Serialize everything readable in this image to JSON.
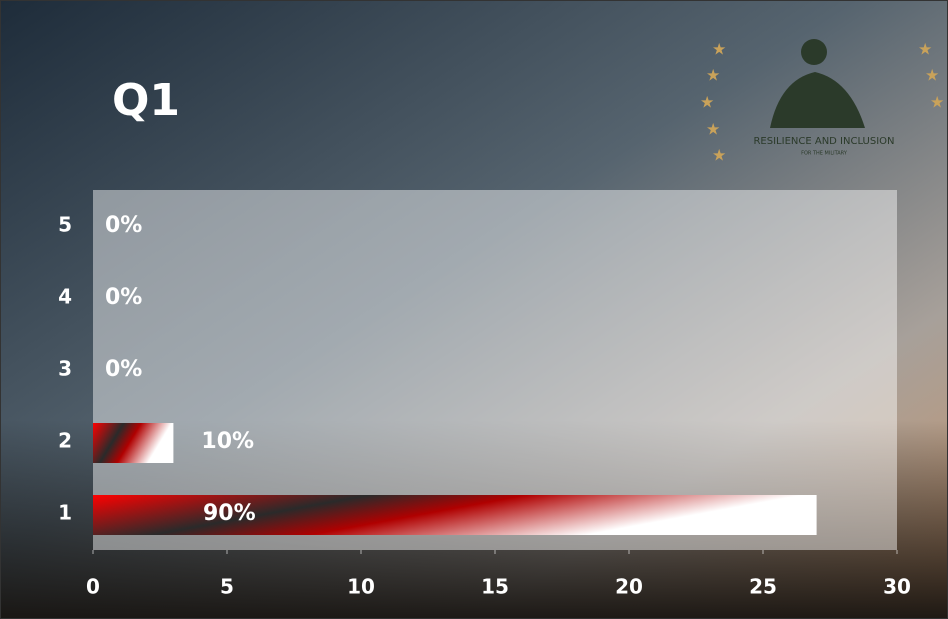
{
  "chart_data": {
    "type": "barh",
    "title": "Q1",
    "logo_text": "RESILIENCE AND INCLUSION",
    "logo_subtext": "FOR THE MILITARY",
    "categories": [
      "1",
      "2",
      "3",
      "4",
      "5"
    ],
    "values": [
      27,
      3,
      0,
      0,
      0
    ],
    "value_labels": [
      "90%",
      "10%",
      "0%",
      "0%",
      "0%"
    ],
    "xlim": [
      0,
      30
    ],
    "xticks": [
      0,
      5,
      10,
      15,
      20,
      25,
      30
    ],
    "colors": [
      "#ff0000",
      "#2a2a2a",
      "#b00000",
      "#ffffff"
    ]
  }
}
